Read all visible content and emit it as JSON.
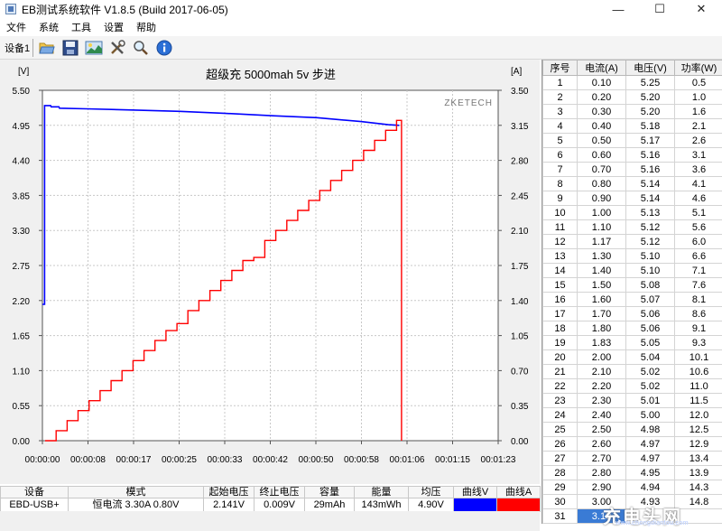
{
  "window": {
    "title": "EB测试系统软件 V1.8.5 (Build 2017-06-05)",
    "minimize_glyph": "—",
    "maximize_glyph": "☐",
    "close_glyph": "✕"
  },
  "menu": [
    "文件",
    "系统",
    "工具",
    "设置",
    "帮助"
  ],
  "toolbar": {
    "device_label": "设备1",
    "buttons": [
      "open-folder-icon",
      "save-disk-icon",
      "chart-image-icon",
      "tools-icon",
      "search-magnifier-icon",
      "info-icon"
    ]
  },
  "chart_data": {
    "type": "line",
    "title": "超级充 5000mah 5v 步进",
    "watermark": "ZKETECH",
    "ylabel_left": "[V]",
    "ylabel_right": "[A]",
    "y_left_ticks": [
      "5.50",
      "4.95",
      "4.40",
      "3.85",
      "3.30",
      "2.75",
      "2.20",
      "1.65",
      "1.10",
      "0.55",
      "0.00"
    ],
    "y_right_ticks": [
      "3.50",
      "3.15",
      "2.80",
      "2.45",
      "2.10",
      "1.75",
      "1.40",
      "1.05",
      "0.70",
      "0.35",
      "0.00"
    ],
    "x_ticks": [
      "00:00:00",
      "00:00:08",
      "00:00:17",
      "00:00:25",
      "00:00:33",
      "00:00:42",
      "00:00:50",
      "00:00:58",
      "00:01:06",
      "00:01:15",
      "00:01:23"
    ],
    "ylim_left": [
      0,
      5.5
    ],
    "ylim_right": [
      0,
      3.5
    ],
    "xlim_seconds": [
      0,
      83
    ],
    "grid": true,
    "series": [
      {
        "name": "曲线V",
        "axis": "left",
        "color": "#0000ff",
        "points": [
          [
            0,
            2.14
          ],
          [
            0.4,
            2.14
          ],
          [
            0.4,
            5.26
          ],
          [
            1.5,
            5.26
          ],
          [
            1.6,
            5.24
          ],
          [
            3,
            5.24
          ],
          [
            3.1,
            5.22
          ],
          [
            8,
            5.21
          ],
          [
            17,
            5.19
          ],
          [
            25,
            5.17
          ],
          [
            33,
            5.14
          ],
          [
            42,
            5.1
          ],
          [
            50,
            5.07
          ],
          [
            58,
            5.01
          ],
          [
            63,
            4.96
          ],
          [
            65,
            4.95
          ]
        ]
      },
      {
        "name": "曲线A",
        "axis": "right",
        "color": "#ff0000",
        "step_seconds": 2.0,
        "end_seconds": 65,
        "drop_seconds": 65.4,
        "values": [
          0.0,
          0.1,
          0.2,
          0.3,
          0.4,
          0.5,
          0.6,
          0.7,
          0.8,
          0.9,
          1.0,
          1.1,
          1.17,
          1.3,
          1.4,
          1.5,
          1.6,
          1.7,
          1.8,
          1.83,
          2.0,
          2.1,
          2.2,
          2.3,
          2.4,
          2.5,
          2.6,
          2.7,
          2.8,
          2.9,
          3.0,
          3.1,
          3.2
        ]
      }
    ]
  },
  "data_table": {
    "headers": [
      "序号",
      "电流(A)",
      "电压(V)",
      "功率(W)"
    ],
    "rows": [
      [
        "1",
        "0.10",
        "5.25",
        "0.5"
      ],
      [
        "2",
        "0.20",
        "5.20",
        "1.0"
      ],
      [
        "3",
        "0.30",
        "5.20",
        "1.6"
      ],
      [
        "4",
        "0.40",
        "5.18",
        "2.1"
      ],
      [
        "5",
        "0.50",
        "5.17",
        "2.6"
      ],
      [
        "6",
        "0.60",
        "5.16",
        "3.1"
      ],
      [
        "7",
        "0.70",
        "5.16",
        "3.6"
      ],
      [
        "8",
        "0.80",
        "5.14",
        "4.1"
      ],
      [
        "9",
        "0.90",
        "5.14",
        "4.6"
      ],
      [
        "10",
        "1.00",
        "5.13",
        "5.1"
      ],
      [
        "11",
        "1.10",
        "5.12",
        "5.6"
      ],
      [
        "12",
        "1.17",
        "5.12",
        "6.0"
      ],
      [
        "13",
        "1.30",
        "5.10",
        "6.6"
      ],
      [
        "14",
        "1.40",
        "5.10",
        "7.1"
      ],
      [
        "15",
        "1.50",
        "5.08",
        "7.6"
      ],
      [
        "16",
        "1.60",
        "5.07",
        "8.1"
      ],
      [
        "17",
        "1.70",
        "5.06",
        "8.6"
      ],
      [
        "18",
        "1.80",
        "5.06",
        "9.1"
      ],
      [
        "19",
        "1.83",
        "5.05",
        "9.3"
      ],
      [
        "20",
        "2.00",
        "5.04",
        "10.1"
      ],
      [
        "21",
        "2.10",
        "5.02",
        "10.6"
      ],
      [
        "22",
        "2.20",
        "5.02",
        "11.0"
      ],
      [
        "23",
        "2.30",
        "5.01",
        "11.5"
      ],
      [
        "24",
        "2.40",
        "5.00",
        "12.0"
      ],
      [
        "25",
        "2.50",
        "4.98",
        "12.5"
      ],
      [
        "26",
        "2.60",
        "4.97",
        "12.9"
      ],
      [
        "27",
        "2.70",
        "4.97",
        "13.4"
      ],
      [
        "28",
        "2.80",
        "4.95",
        "13.9"
      ],
      [
        "29",
        "2.90",
        "4.94",
        "14.3"
      ],
      [
        "30",
        "3.00",
        "4.93",
        "14.8"
      ],
      [
        "31",
        "3.10",
        "",
        ""
      ]
    ],
    "selected_row": "31"
  },
  "summary": {
    "headers": [
      "设备",
      "模式",
      "起始电压",
      "终止电压",
      "容量",
      "能量",
      "均压",
      "曲线V",
      "曲线A"
    ],
    "device": "EBD-USB+",
    "mode": "恒电流",
    "mode_current": "3.30A",
    "mode_voltage": "0.80V",
    "start_voltage": "2.141V",
    "end_voltage": "0.009V",
    "capacity": "29mAh",
    "energy": "143mWh",
    "avg_voltage": "4.90V",
    "curve_v_color": "#0000ff",
    "curve_a_color": "#ff0000"
  },
  "watermark_site": {
    "main": "充电头网",
    "sub": "www.chongdiantou.com"
  }
}
